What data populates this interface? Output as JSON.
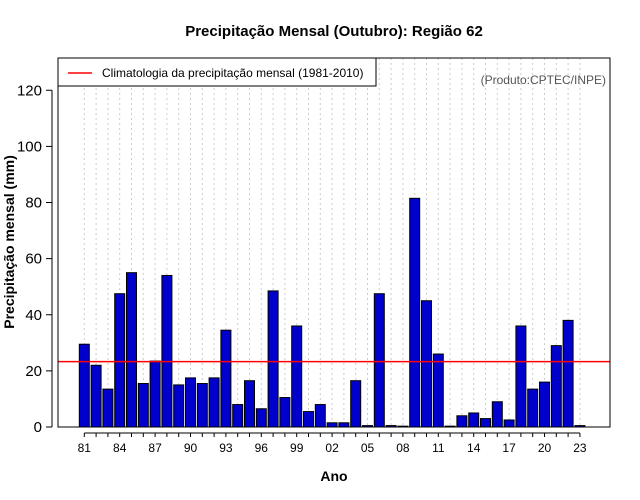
{
  "chart_data": {
    "type": "bar",
    "title": "Precipitação Mensal (Outubro): Região 62",
    "xlabel": "Ano",
    "ylabel": "Precipitação mensal (mm)",
    "ylim": [
      0,
      130
    ],
    "yticks": [
      0,
      20,
      40,
      60,
      80,
      100,
      120
    ],
    "categories": [
      "1981",
      "1982",
      "1983",
      "1984",
      "1985",
      "1986",
      "1987",
      "1988",
      "1989",
      "1990",
      "1991",
      "1992",
      "1993",
      "1994",
      "1995",
      "1996",
      "1997",
      "1998",
      "1999",
      "2000",
      "2001",
      "2002",
      "2003",
      "2004",
      "2005",
      "2006",
      "2007",
      "2008",
      "2009",
      "2010",
      "2011",
      "2012",
      "2013",
      "2014",
      "2015",
      "2016",
      "2017",
      "2018",
      "2019",
      "2020",
      "2021",
      "2022",
      "2023"
    ],
    "xtick_labels": [
      "81",
      "84",
      "87",
      "90",
      "93",
      "96",
      "99",
      "02",
      "05",
      "08",
      "11",
      "14",
      "17",
      "20",
      "23"
    ],
    "values": [
      29.5,
      22,
      13.5,
      47.5,
      55,
      15.5,
      23.5,
      54,
      15,
      17.5,
      15.5,
      17.5,
      34.5,
      8,
      16.5,
      6.5,
      48.5,
      10.5,
      36,
      5.5,
      8,
      1.5,
      1.5,
      16.5,
      0.5,
      47.5,
      0.5,
      0.3,
      81.5,
      45,
      26,
      0.3,
      4,
      5,
      3,
      9,
      2.5,
      36,
      13.5,
      16,
      29,
      38,
      0.5
    ],
    "reference_line": {
      "label": "Climatologia da precipitação mensal (1981-2010)",
      "value": 23.3,
      "color": "#ff0000"
    },
    "bar_color": "#0000cc",
    "grid": "vertical dotted",
    "legend_position": "top-left",
    "annotation": "(Produto:CPTEC/INPE)"
  }
}
